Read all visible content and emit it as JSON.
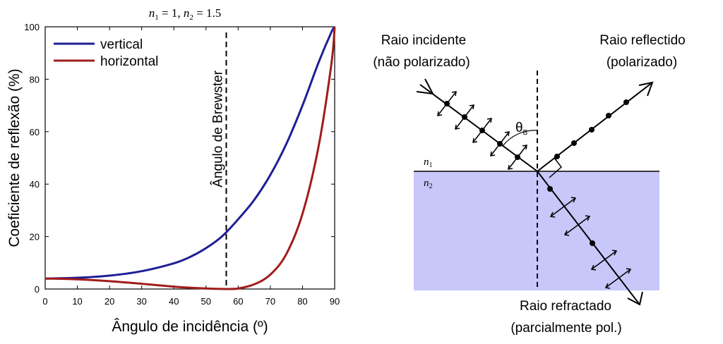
{
  "chart_data": {
    "type": "line",
    "title_n1": "1",
    "title_n2": "1.5",
    "xlabel": "Ângulo de incidência (º)",
    "ylabel": "Coeficiente de reflexão (%)",
    "xlim": [
      0,
      90
    ],
    "ylim": [
      0,
      100
    ],
    "xticks": [
      0,
      10,
      20,
      30,
      40,
      50,
      60,
      70,
      80,
      90
    ],
    "yticks": [
      0,
      20,
      40,
      60,
      80,
      100
    ],
    "legend_position": "top-left",
    "grid": false,
    "series": [
      {
        "name": "vertical",
        "color": "#1f1f96",
        "x": [
          0,
          10,
          20,
          30,
          40,
          45,
          50,
          55,
          60,
          65,
          70,
          75,
          80,
          85,
          89,
          90
        ],
        "y": [
          4.0,
          4.3,
          5.1,
          6.8,
          9.8,
          12.2,
          15.6,
          20.1,
          26.6,
          34.0,
          43.5,
          55.4,
          70.0,
          86.4,
          98.0,
          100
        ]
      },
      {
        "name": "horizontal",
        "color": "#a01c1c",
        "x": [
          0,
          10,
          20,
          30,
          40,
          45,
          50,
          55,
          56.3,
          60,
          65,
          70,
          75,
          80,
          85,
          89,
          90
        ],
        "y": [
          4.0,
          3.7,
          3.0,
          2.0,
          0.9,
          0.5,
          0.2,
          0.02,
          0.0,
          0.2,
          1.8,
          5.5,
          13.4,
          28.7,
          54.4,
          86.0,
          100
        ]
      }
    ],
    "annotations": [
      {
        "label": "Ângulo de Brewster",
        "x": 56.3
      }
    ]
  },
  "diagram": {
    "incident_label_1": "Raio incidente",
    "incident_label_2": "(não polarizado)",
    "reflected_label_1": "Raio reflectido",
    "reflected_label_2": "(polarizado)",
    "refracted_label_1": "Raio refractado",
    "refracted_label_2": "(parcialmente pol.)",
    "theta": "θ",
    "theta_sub": "B",
    "n1": "n",
    "n1_sub": "1",
    "n2": "n",
    "n2_sub": "2",
    "medium_color": "#c7c7fa"
  }
}
